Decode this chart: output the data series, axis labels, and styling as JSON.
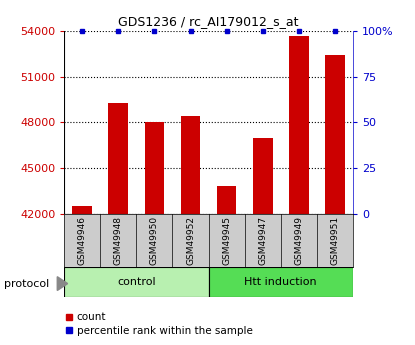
{
  "title": "GDS1236 / rc_AI179012_s_at",
  "samples": [
    "GSM49946",
    "GSM49948",
    "GSM49950",
    "GSM49952",
    "GSM49945",
    "GSM49947",
    "GSM49949",
    "GSM49951"
  ],
  "counts": [
    42500,
    49300,
    48000,
    48400,
    43800,
    47000,
    53700,
    52400
  ],
  "percentile_ranks": [
    100,
    100,
    100,
    100,
    100,
    100,
    100,
    100
  ],
  "groups": [
    {
      "label": "control",
      "indices": [
        0,
        1,
        2,
        3
      ],
      "color": "#b8f0b0"
    },
    {
      "label": "Htt induction",
      "indices": [
        4,
        5,
        6,
        7
      ],
      "color": "#55dd55"
    }
  ],
  "bar_color": "#cc0000",
  "dot_color": "#0000cc",
  "ylim": [
    42000,
    54000
  ],
  "yticks": [
    42000,
    45000,
    48000,
    51000,
    54000
  ],
  "y2_ticks": [
    0,
    25,
    50,
    75,
    100
  ],
  "y2_labels": [
    "0",
    "25",
    "50",
    "75",
    "100%"
  ],
  "ylabel_color": "#cc0000",
  "y2_color": "#0000cc",
  "plot_bg_color": "#ffffff",
  "grid_color": "#000000",
  "legend_items": [
    {
      "label": "count",
      "color": "#cc0000"
    },
    {
      "label": "percentile rank within the sample",
      "color": "#0000cc"
    }
  ],
  "protocol_label": "protocol",
  "sample_label_box_color": "#cccccc"
}
